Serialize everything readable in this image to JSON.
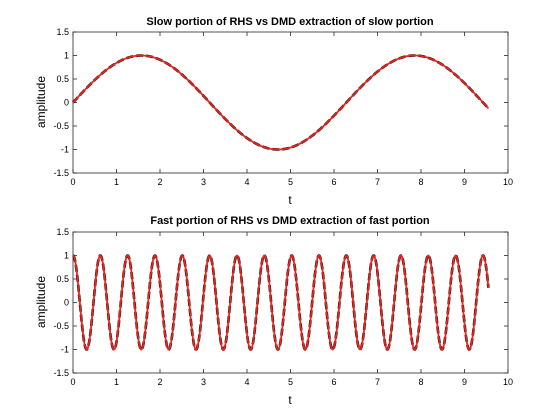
{
  "chart_data": [
    {
      "type": "line",
      "title": "Slow portion of RHS vs DMD extraction of slow portion",
      "xlabel": "t",
      "ylabel": "amplitude",
      "xlim": [
        0,
        10
      ],
      "ylim": [
        -1.5,
        1.5
      ],
      "xticks": [
        "0",
        "1",
        "2",
        "3",
        "4",
        "5",
        "6",
        "7",
        "8",
        "9",
        "10"
      ],
      "yticks": [
        "-1.5",
        "-1",
        "-0.5",
        "0",
        "0.5",
        "1",
        "1.5"
      ],
      "grid": false,
      "series": [
        {
          "color": "#000000",
          "style": "dashed",
          "function": "sin",
          "frequency": 1.0,
          "t_end": 9.55
        },
        {
          "color": "#e8251f",
          "style": "solid",
          "function": "sin",
          "frequency": 1.0,
          "t_end": 9.55
        }
      ]
    },
    {
      "type": "line",
      "title": "Fast portion of RHS vs DMD extraction of fast portion",
      "xlabel": "t",
      "ylabel": "amplitude",
      "xlim": [
        0,
        10
      ],
      "ylim": [
        -1.5,
        1.5
      ],
      "xticks": [
        "0",
        "1",
        "2",
        "3",
        "4",
        "5",
        "6",
        "7",
        "8",
        "9",
        "10"
      ],
      "yticks": [
        "-1.5",
        "-1",
        "-0.5",
        "0",
        "0.5",
        "1",
        "1.5"
      ],
      "grid": false,
      "series": [
        {
          "color": "#000000",
          "style": "dashed",
          "function": "cos",
          "frequency": 10.0,
          "t_end": 9.55
        },
        {
          "color": "#e8251f",
          "style": "solid",
          "function": "cos",
          "frequency": 10.0,
          "t_end": 9.55
        }
      ]
    }
  ]
}
